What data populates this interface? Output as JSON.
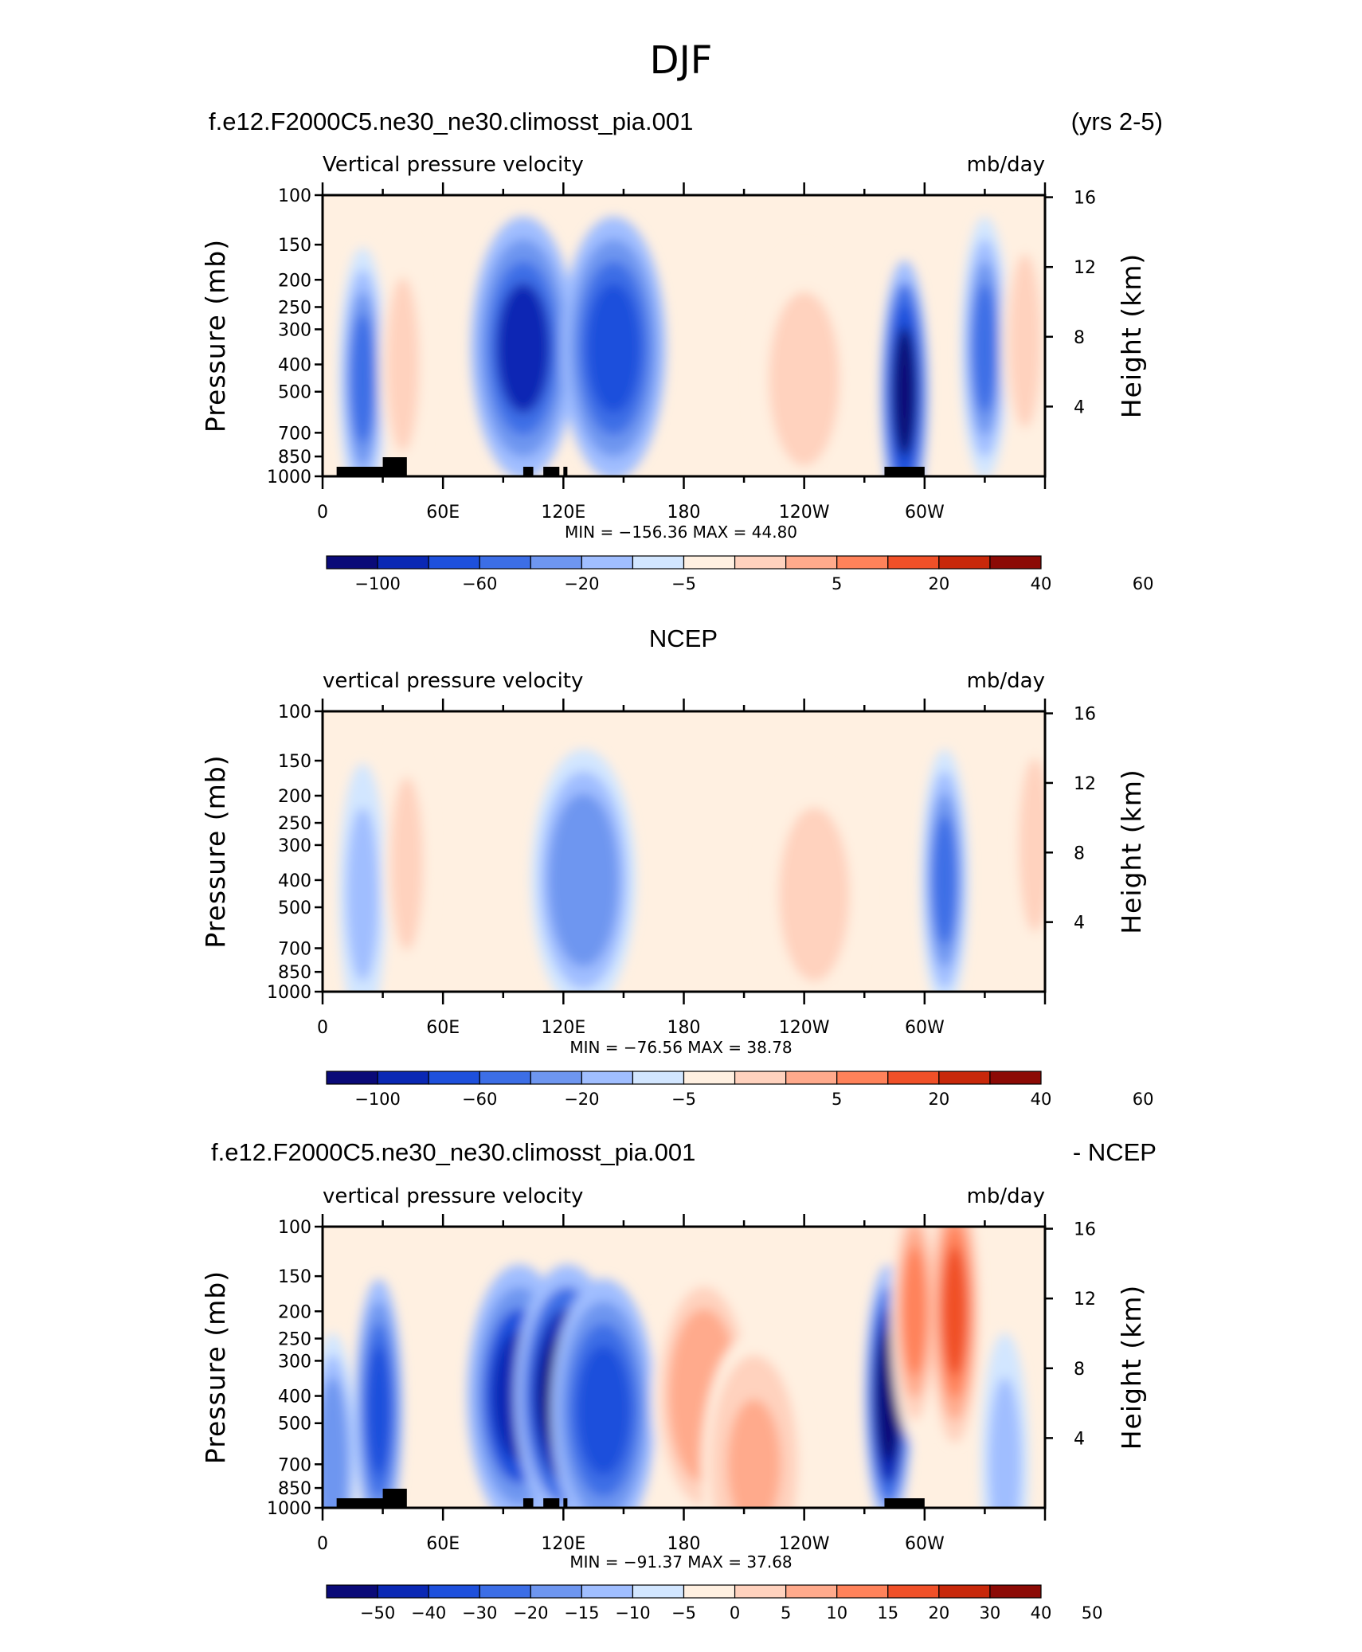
{
  "figure_title": "DJF",
  "colors": {
    "palette_11": [
      "#0a0a78",
      "#0a28b4",
      "#1e50dc",
      "#3c6ee6",
      "#6e96f0",
      "#a0beff",
      "#d2e6ff",
      "#fff0e1",
      "#ffd2be",
      "#ffaa8c",
      "#ff825a",
      "#f05028",
      "#c8280a",
      "#8c0a05"
    ],
    "land_mask": "#000000"
  },
  "panels": [
    {
      "header_left": "f.e12.F2000C5.ne30_ne30.climosst_pia.001",
      "header_right": "(yrs 2-5)",
      "variable": "Vertical pressure velocity",
      "units": "mb/day",
      "min_max": "MIN =  −156.36   MAX =    44.80"
    },
    {
      "header_center": "NCEP",
      "variable": "vertical pressure velocity",
      "units": "mb/day",
      "min_max": "MIN =  −76.56   MAX =   38.78"
    },
    {
      "header_left": "f.e12.F2000C5.ne30_ne30.climosst_pia.001",
      "header_right": "- NCEP",
      "variable": "vertical pressure velocity",
      "units": "mb/day",
      "min_max": "MIN =  −91.37   MAX =   37.68"
    }
  ],
  "axes": {
    "ylabel_left": "Pressure (mb)",
    "ylabel_right": "Height (km)",
    "pressure_ticks": [
      "100",
      "150",
      "200",
      "250",
      "300",
      "400",
      "500",
      "700",
      "850",
      "1000"
    ],
    "height_ticks": [
      "16",
      "12",
      "8",
      "4"
    ],
    "lon_ticks": [
      "0",
      "60E",
      "120E",
      "180",
      "120W",
      "60W"
    ]
  },
  "chart_data": [
    {
      "type": "heatmap",
      "x_axis": "longitude (0–360)",
      "y_axis": "pressure (mb), log scale, 1000–100",
      "range": [
        -156.36,
        44.8
      ],
      "colorbar_labels": [
        "−100",
        "−60",
        "−20",
        "−5",
        "5",
        "20",
        "40",
        "60"
      ],
      "features": [
        {
          "lon": 20,
          "p": 450,
          "value": -60
        },
        {
          "lon": 40,
          "p": 400,
          "value": 25
        },
        {
          "lon": 100,
          "p": 350,
          "value": -80
        },
        {
          "lon": 145,
          "p": 350,
          "value": -70
        },
        {
          "lon": 240,
          "p": 450,
          "value": 25
        },
        {
          "lon": 290,
          "p": 500,
          "value": -100
        },
        {
          "lon": 330,
          "p": 350,
          "value": -50
        },
        {
          "lon": 350,
          "p": 330,
          "value": 25
        }
      ]
    },
    {
      "type": "heatmap",
      "x_axis": "longitude (0–360)",
      "y_axis": "pressure (mb), log scale, 1000–100",
      "range": [
        -76.56,
        38.78
      ],
      "colorbar_labels": [
        "−100",
        "−60",
        "−20",
        "−5",
        "5",
        "20",
        "40",
        "60"
      ],
      "features": [
        {
          "lon": 20,
          "p": 450,
          "value": -30
        },
        {
          "lon": 42,
          "p": 350,
          "value": 22
        },
        {
          "lon": 130,
          "p": 400,
          "value": -45
        },
        {
          "lon": 245,
          "p": 450,
          "value": 25
        },
        {
          "lon": 310,
          "p": 400,
          "value": -55
        },
        {
          "lon": 355,
          "p": 300,
          "value": 22
        }
      ]
    },
    {
      "type": "heatmap",
      "x_axis": "longitude (0–360)",
      "y_axis": "pressure (mb), log scale, 1000–100",
      "range": [
        -91.37,
        37.68
      ],
      "colorbar_labels": [
        "−50",
        "−40",
        "−30",
        "−20",
        "−15",
        "−10",
        "−5",
        "0",
        "5",
        "10",
        "15",
        "20",
        "30",
        "40",
        "50"
      ],
      "features": [
        {
          "lon": 5,
          "p": 700,
          "value": -25
        },
        {
          "lon": 28,
          "p": 450,
          "value": -35
        },
        {
          "lon": 98,
          "p": 400,
          "value": -50
        },
        {
          "lon": 122,
          "p": 400,
          "value": -60
        },
        {
          "lon": 140,
          "p": 450,
          "value": -35
        },
        {
          "lon": 190,
          "p": 400,
          "value": 25
        },
        {
          "lon": 215,
          "p": 700,
          "value": 20
        },
        {
          "lon": 282,
          "p": 400,
          "value": -60
        },
        {
          "lon": 295,
          "p": 200,
          "value": 30
        },
        {
          "lon": 315,
          "p": 200,
          "value": 35
        },
        {
          "lon": 340,
          "p": 700,
          "value": -15
        }
      ]
    }
  ]
}
